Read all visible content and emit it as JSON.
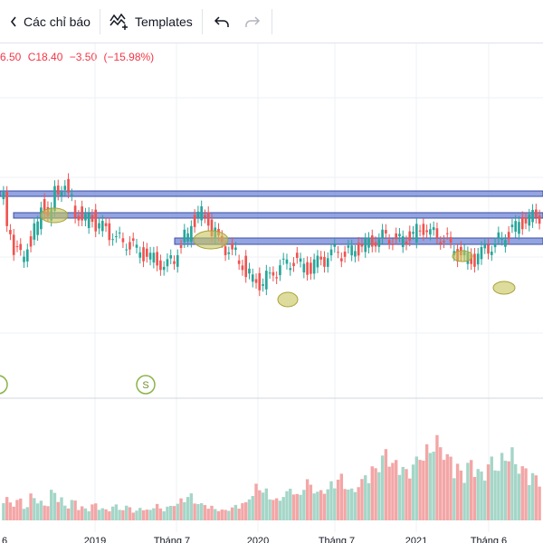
{
  "toolbar": {
    "indicators_label": "Các chỉ báo",
    "templates_label": "Templates",
    "undo_icon": "undo-icon",
    "redo_icon": "redo-icon"
  },
  "legend": {
    "open_partial": "6.50",
    "close": "C18.40",
    "change": "−3.50",
    "change_pct": "(−15.98%)",
    "color": "#f23645"
  },
  "colors": {
    "up": "#26a69a",
    "down": "#ef5350",
    "vol_up": "#a5d6c8",
    "vol_down": "#f3a6a6",
    "zone_fill": "#6f86d6",
    "zone_stroke": "#3b4ea8",
    "marker": "#c8c45a",
    "grid": "#eef0f4"
  },
  "time_axis": [
    "6",
    "2019",
    "Tháng 7",
    "2020",
    "Tháng 7",
    "2021",
    "Tháng 6"
  ],
  "event_markers": [
    "S"
  ],
  "chart_data": {
    "type": "candlestick",
    "price_series": [
      26,
      24,
      22.5,
      22,
      23,
      24,
      25.5,
      25,
      26.5,
      27,
      26,
      25,
      24.5,
      24.8,
      24.2,
      24,
      23.6,
      23.2,
      23,
      22.8,
      22.4,
      22.2,
      21.9,
      21.6,
      21.4,
      21.8,
      22.6,
      23.4,
      24.5,
      25,
      24.6,
      23.8,
      23,
      22.6,
      22.2,
      21.6,
      20.8,
      20.4,
      20.2,
      20.6,
      21,
      21.4,
      21.6,
      21.8,
      21.4,
      21.2,
      21.6,
      21.8,
      22.2,
      22.4,
      22.2,
      22.4,
      22.6,
      22.8,
      23,
      23.2,
      23.4,
      23.3,
      23.1,
      23.3,
      23.5,
      23.8,
      24,
      23.6,
      23.4,
      23.2,
      22.6,
      22.2,
      22,
      21.8,
      22.2,
      22.6,
      22.8,
      23.2,
      23.6,
      24,
      24.4,
      24.6,
      24.8
    ],
    "volume_series": [
      20,
      15,
      18,
      12,
      22,
      16,
      14,
      25,
      19,
      13,
      17,
      12,
      10,
      14,
      11,
      9,
      13,
      10,
      12,
      8,
      11,
      9,
      14,
      10,
      12,
      15,
      18,
      22,
      16,
      14,
      12,
      10,
      9,
      11,
      13,
      15,
      22,
      30,
      26,
      20,
      18,
      24,
      28,
      22,
      35,
      30,
      25,
      28,
      32,
      38,
      30,
      26,
      34,
      40,
      45,
      55,
      60,
      50,
      48,
      42,
      52,
      58,
      62,
      70,
      65,
      55,
      48,
      42,
      50,
      46,
      40,
      52,
      48,
      55,
      60,
      50,
      45,
      40,
      38
    ]
  }
}
